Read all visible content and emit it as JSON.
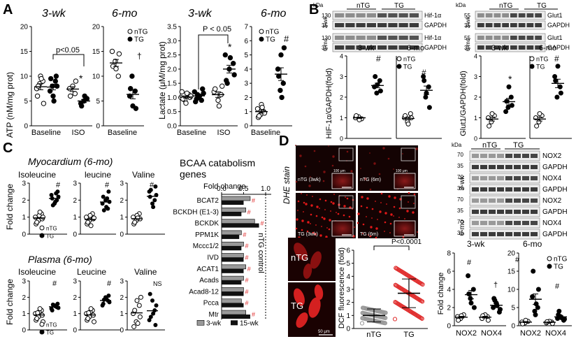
{
  "panels": {
    "A": "A",
    "B": "B",
    "C": "C",
    "D": "D"
  },
  "legend": {
    "ntg": "nTG",
    "tg": "TG"
  },
  "panelA": {
    "atp": {
      "ylabel": "ATP (nM/mg prot)",
      "t3": "3-wk",
      "t6": "6-mo",
      "yticks": [
        "0",
        "5",
        "10",
        "15",
        "20"
      ],
      "xcats": [
        "Baseline",
        "ISO"
      ],
      "x6": "Baseline",
      "pval": "p<0.05",
      "star": "*",
      "dagger": "†"
    },
    "lac": {
      "ylabel": "Lactate (μM/mg prot)",
      "t3": "3-wk",
      "t6": "6-mo",
      "yticks": [
        "0.0",
        "0.5",
        "1.0",
        "1.5",
        "2.0",
        "2.5",
        "3.0",
        "3.5"
      ],
      "yticks6": [
        "0",
        "1",
        "2",
        "3",
        "4",
        "5",
        "6",
        "7"
      ],
      "xcats": [
        "Baseline",
        "ISO"
      ],
      "x6": "Baseline",
      "pval": "P < 0.05",
      "star": "*",
      "hash": "#"
    }
  },
  "panelB": {
    "kda": "kDa",
    "groups": [
      "nTG",
      "TG"
    ],
    "hif": {
      "rows": [
        "3-wk",
        "6-mo"
      ],
      "m1": "130",
      "m2": "35",
      "b1": "Hif-1α",
      "b2": "GAPDH",
      "ylabel": "HIF-1α/GAPDH(fold)",
      "yticks": [
        "0",
        "1",
        "2",
        "3",
        "4"
      ],
      "t3": "3-wk",
      "t6": "6-mo",
      "hash": "#"
    },
    "glut": {
      "rows": [
        "3-wk",
        "6-mo"
      ],
      "m1": "55",
      "m2": "35",
      "b1": "Glut1",
      "b2": "GAPDH",
      "ylabel": "Glut1/GAPDH(fold)",
      "yticks": [
        "0",
        "1",
        "2",
        "3",
        "4"
      ],
      "t3": "3-wk",
      "t6": "6-mo",
      "star": "*",
      "hash": "#"
    }
  },
  "panelC": {
    "myo_title": "Myocardium (6-mo)",
    "plasma_title": "Plasma (6-mo)",
    "myo_amino": [
      "Isoleucine",
      "leucine",
      "Valine"
    ],
    "plasma_amino": [
      "Isoleucine",
      "Leucine",
      "Valine"
    ],
    "ylabel": "Fold change",
    "yticks": [
      "0",
      "1",
      "2",
      "3"
    ],
    "hash": "#",
    "ns": "NS",
    "bcaa_title_1": "BCAA catabolism",
    "bcaa_title_2": "genes",
    "fold_change": "Fold change",
    "control": "nTG control",
    "legend": [
      "3-wk",
      "15-wk"
    ]
  },
  "panelD": {
    "dhe": "DHE stain",
    "scale100": "100 μm",
    "scale50": "50 μm",
    "micro_labels": [
      "nTG (3wk)",
      "nTG (6m)",
      "TG (3wk)",
      "TG (6m)"
    ],
    "cell_labels": [
      "nTG",
      "TG"
    ],
    "dcf": {
      "ylabel": "DCF fluorescence (fold)",
      "yticks": [
        "0",
        "1",
        "2",
        "3",
        "4",
        "5",
        "6"
      ],
      "xcats": [
        "nTG",
        "TG"
      ],
      "pval": "P<0.0001"
    },
    "wb": {
      "kda": "kDa",
      "groups": [
        "nTG",
        "TG"
      ],
      "rows": [
        "3-wk",
        "6-mo"
      ],
      "bands": [
        "NOX2",
        "GAPDH",
        "NOX4",
        "GAPDH",
        "NOX2",
        "GAPDH",
        "NOX4",
        "GAPDH"
      ],
      "markers": [
        "70",
        "35",
        "70",
        "35",
        "70",
        "35",
        "70",
        "35"
      ]
    },
    "nox": {
      "ylabel": "Fold change",
      "t3": "3-wk",
      "t6": "6-mo",
      "yticks3": [
        "0",
        "2",
        "4",
        "6",
        "8"
      ],
      "yticks6": [
        "0",
        "5",
        "10",
        "15",
        "20"
      ],
      "xcats": [
        "NOX2",
        "NOX4"
      ],
      "hash": "#",
      "dagger": "†"
    }
  },
  "chart_data": [
    {
      "type": "scatter",
      "title": "ATP 3-wk",
      "ylabel": "ATP (nM/mg prot)",
      "ylim": [
        0,
        20
      ],
      "categories": [
        "Baseline",
        "ISO"
      ],
      "series": [
        {
          "name": "nTG",
          "values": [
            [
              7.5,
              8.5,
              9,
              6,
              10,
              4.5,
              8,
              9.5
            ],
            [
              6.5,
              7.5,
              8,
              9,
              6
            ]
          ]
        },
        {
          "name": "TG",
          "values": [
            [
              8,
              9,
              7,
              6,
              10,
              9.5,
              5,
              8
            ],
            [
              4.5,
              5,
              5.5,
              4,
              6
            ]
          ]
        }
      ]
    },
    {
      "type": "scatter",
      "title": "ATP 6-mo",
      "ylabel": "ATP (nM/mg prot)",
      "ylim": [
        0,
        20
      ],
      "categories": [
        "Baseline"
      ],
      "series": [
        {
          "name": "nTG",
          "values": [
            [
              15,
              13,
              10,
              12,
              11.5,
              14.5
            ]
          ]
        },
        {
          "name": "TG",
          "values": [
            [
              10,
              7,
              6,
              4,
              3.5,
              7.5
            ]
          ]
        }
      ]
    },
    {
      "type": "scatter",
      "title": "Lactate 3-wk",
      "ylabel": "Lactate (μM/mg prot)",
      "ylim": [
        0,
        3.5
      ],
      "categories": [
        "Baseline",
        "ISO"
      ],
      "series": [
        {
          "name": "nTG",
          "values": [
            [
              1,
              0.9,
              1.1,
              1.2,
              0.8,
              1,
              0.95,
              1.15,
              1.05
            ],
            [
              1.1,
              1.2,
              0.9,
              1.4,
              1.3,
              0.7
            ]
          ]
        },
        {
          "name": "TG",
          "values": [
            [
              1.1,
              0.9,
              1.2,
              1,
              1.3,
              0.85,
              1.05,
              1.15,
              0.95
            ],
            [
              2.5,
              2,
              2.2,
              1.6,
              2.4,
              1.8,
              1.5
            ]
          ]
        }
      ]
    },
    {
      "type": "scatter",
      "title": "Lactate 6-mo",
      "ylabel": "Lactate (μM/mg prot)",
      "ylim": [
        0,
        7
      ],
      "categories": [
        "Baseline"
      ],
      "series": [
        {
          "name": "nTG",
          "values": [
            [
              1.2,
              0.8,
              1,
              0.6,
              1.5,
              0.9,
              0.7,
              1.3
            ]
          ]
        },
        {
          "name": "TG",
          "values": [
            [
              2.5,
              3,
              4,
              5,
              5.5,
              3.5,
              2
            ]
          ]
        }
      ]
    },
    {
      "type": "scatter",
      "title": "HIF-1α/GAPDH 3-wk",
      "ylim": [
        0,
        4
      ],
      "categories": [
        "nTG",
        "TG"
      ],
      "values": [
        [
          1,
          1.05,
          0.95,
          1.1,
          0.9
        ],
        [
          2.2,
          2.8,
          2.5,
          2.6,
          2.3,
          3
        ]
      ]
    },
    {
      "type": "scatter",
      "title": "HIF-1α/GAPDH 6-mo",
      "ylim": [
        0,
        4
      ],
      "categories": [
        "nTG",
        "TG"
      ],
      "values": [
        [
          1,
          0.8,
          1.2,
          1.1,
          0.7,
          1
        ],
        [
          2,
          2.5,
          3,
          2.2,
          1.5,
          2.8
        ]
      ]
    },
    {
      "type": "scatter",
      "title": "Glut1/GAPDH 3-wk",
      "ylim": [
        0,
        4
      ],
      "categories": [
        "nTG",
        "TG"
      ],
      "values": [
        [
          1,
          0.8,
          1.1,
          0.6,
          1.2
        ],
        [
          1.5,
          2,
          1.3,
          2.5,
          1.6,
          1.8
        ]
      ]
    },
    {
      "type": "scatter",
      "title": "Glut1/GAPDH 6-mo",
      "ylim": [
        0,
        4
      ],
      "categories": [
        "nTG",
        "TG"
      ],
      "values": [
        [
          1,
          0.8,
          1.1,
          0.6,
          1.2
        ],
        [
          2,
          2.5,
          3,
          3.5,
          2.2,
          2.8
        ]
      ]
    },
    {
      "type": "bar",
      "title": "BCAA catabolism genes",
      "xlabel": "Fold change",
      "xlim": [
        0,
        1
      ],
      "categories": [
        "BCAT2",
        "BCKDH (E1-3)",
        "BCKDK",
        "PPM1K",
        "Mccc1/2",
        "IVD",
        "ACAT1",
        "Acads",
        "Acad8-12",
        "Pcca",
        "Mtr"
      ],
      "series": [
        {
          "name": "3-wk",
          "values": [
            0.65,
            0.55,
            0.75,
            0.45,
            0.5,
            0.5,
            0.55,
            0.5,
            0.5,
            0.45,
            0.55
          ]
        },
        {
          "name": "15-wk",
          "values": [
            0.5,
            0.45,
            0.85,
            0.4,
            0.45,
            0.5,
            0.5,
            0.45,
            0.5,
            0.5,
            0.65
          ]
        }
      ]
    },
    {
      "type": "scatter",
      "title": "DCF fluorescence",
      "ylabel": "DCF fluorescence (fold)",
      "ylim": [
        0,
        6
      ],
      "categories": [
        "nTG",
        "TG"
      ],
      "series": [
        {
          "name": "mean",
          "values": [
            1.0,
            2.7
          ]
        },
        {
          "name": "sd",
          "values": [
            0.5,
            1.1
          ]
        }
      ]
    },
    {
      "type": "scatter",
      "title": "NOX 3-wk",
      "ylabel": "Fold change",
      "ylim": [
        0,
        8
      ],
      "categories": [
        "NOX2",
        "NOX4"
      ],
      "series": [
        {
          "name": "nTG",
          "values": [
            [
              1,
              0.8,
              1.2,
              0.6,
              1.1
            ],
            [
              1,
              0.8,
              1.2,
              0.6,
              1.1
            ]
          ]
        },
        {
          "name": "TG",
          "values": [
            [
              3,
              4,
              5.5,
              2.5,
              2,
              3.5
            ],
            [
              2,
              2.5,
              1.5,
              3,
              2.2,
              1.8,
              2.8
            ]
          ]
        }
      ]
    },
    {
      "type": "scatter",
      "title": "NOX 6-mo",
      "ylabel": "Fold change",
      "ylim": [
        0,
        20
      ],
      "categories": [
        "NOX2",
        "NOX4"
      ],
      "series": [
        {
          "name": "nTG",
          "values": [
            [
              1,
              0.8,
              1.2,
              0.5,
              1.5
            ],
            [
              1,
              0.8,
              1.2,
              0.6,
              1.1
            ]
          ]
        },
        {
          "name": "TG",
          "values": [
            [
              4,
              5,
              8,
              3,
              10,
              15,
              6
            ],
            [
              2,
              2.5,
              1.5,
              3,
              2.2,
              1.8,
              4
            ]
          ]
        }
      ]
    }
  ]
}
